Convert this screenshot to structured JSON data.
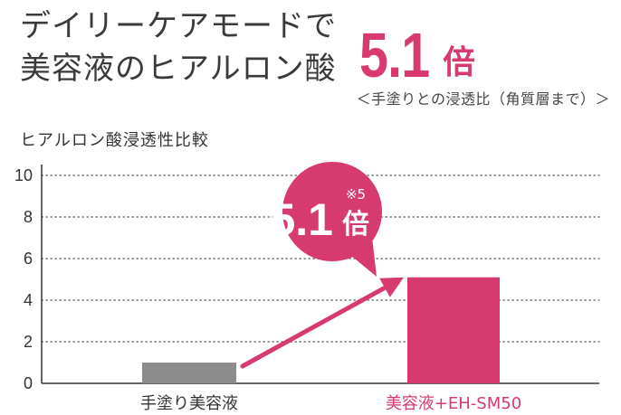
{
  "headline": {
    "line1": "デイリーケアモードで",
    "line2": "美容液のヒアルロン酸"
  },
  "highlight": {
    "value": "5.1",
    "unit": "倍",
    "note": "＜手塗りとの浸透比（角質層まで）＞"
  },
  "chart_data": {
    "type": "bar",
    "title": "ヒアルロン酸浸透性比較",
    "categories": [
      "手塗り美容液",
      "美容液+EH-SM50"
    ],
    "values": [
      1,
      5.1
    ],
    "ylim": [
      0,
      10
    ],
    "yticks": [
      "0",
      "2",
      "4",
      "6",
      "8",
      "10"
    ],
    "grid": true,
    "colors": [
      "#8c8c8c",
      "#d63a6f"
    ],
    "label_colors": [
      "#333333",
      "#d63a6f"
    ],
    "callout": {
      "value": "5.1",
      "note": "※5",
      "unit": "倍",
      "color": "#d63a6f"
    },
    "arrow_color": "#d63a6f"
  }
}
